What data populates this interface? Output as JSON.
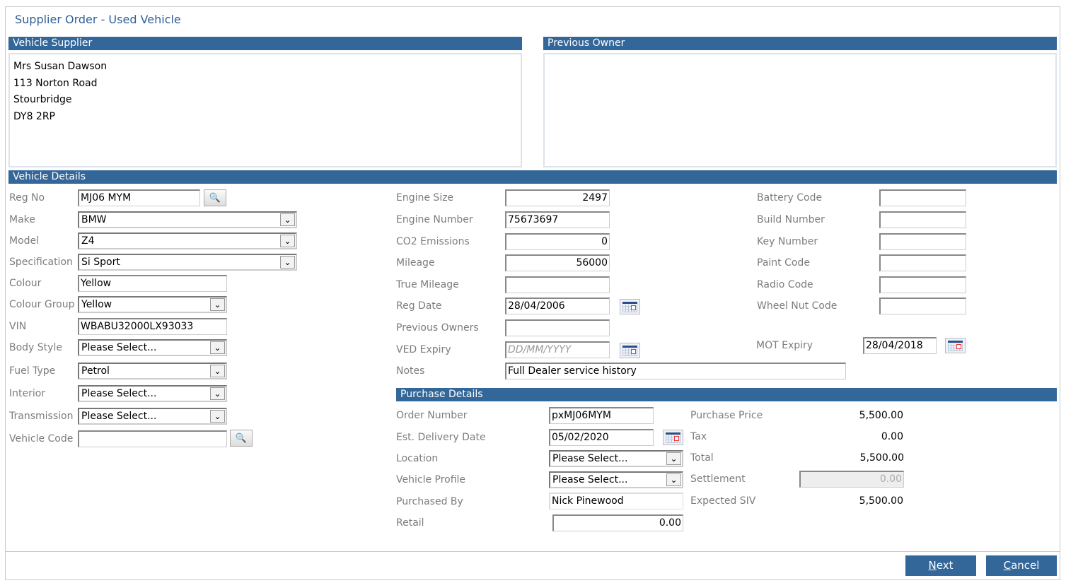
{
  "title": "Supplier Order - Used Vehicle",
  "supplier": {
    "header": "Vehicle Supplier",
    "lines": [
      "Mrs Susan Dawson",
      "113 Norton Road",
      "Stourbridge",
      "DY8 2RP"
    ]
  },
  "previous_owner": {
    "header": "Previous Owner"
  },
  "vehicle": {
    "header": "Vehicle Details",
    "reg_no": {
      "label": "Reg No",
      "value": "MJ06 MYM"
    },
    "make": {
      "label": "Make",
      "value": "BMW"
    },
    "model": {
      "label": "Model",
      "value": "Z4"
    },
    "specification": {
      "label": "Specification",
      "value": "Si Sport"
    },
    "colour": {
      "label": "Colour",
      "value": "Yellow"
    },
    "colour_group": {
      "label": "Colour Group",
      "value": "Yellow"
    },
    "vin": {
      "label": "VIN",
      "value": "WBABU32000LX93033"
    },
    "body_style": {
      "label": "Body Style",
      "value": "Please Select..."
    },
    "fuel_type": {
      "label": "Fuel Type",
      "value": "Petrol"
    },
    "interior": {
      "label": "Interior",
      "value": "Please Select..."
    },
    "transmission": {
      "label": "Transmission",
      "value": "Please Select..."
    },
    "vehicle_code": {
      "label": "Vehicle Code",
      "value": ""
    },
    "engine_size": {
      "label": "Engine Size",
      "value": "2497"
    },
    "engine_number": {
      "label": "Engine Number",
      "value": "75673697"
    },
    "co2": {
      "label": "CO2 Emissions",
      "value": "0"
    },
    "mileage": {
      "label": "Mileage",
      "value": "56000"
    },
    "true_mileage": {
      "label": "True Mileage",
      "value": ""
    },
    "reg_date": {
      "label": "Reg Date",
      "value": "28/04/2006"
    },
    "previous_owners": {
      "label": "Previous Owners",
      "value": ""
    },
    "ved_expiry": {
      "label": "VED Expiry",
      "placeholder": "DD/MM/YYYY"
    },
    "notes": {
      "label": "Notes",
      "value": "Full Dealer service history"
    },
    "battery_code": {
      "label": "Battery Code",
      "value": ""
    },
    "build_number": {
      "label": "Build Number",
      "value": ""
    },
    "key_number": {
      "label": "Key Number",
      "value": ""
    },
    "paint_code": {
      "label": "Paint Code",
      "value": ""
    },
    "radio_code": {
      "label": "Radio Code",
      "value": ""
    },
    "wheel_nut_code": {
      "label": "Wheel Nut Code",
      "value": ""
    },
    "mot_expiry": {
      "label": "MOT Expiry",
      "value": "28/04/2018"
    }
  },
  "purchase": {
    "header": "Purchase Details",
    "order_number": {
      "label": "Order Number",
      "value": "pxMJ06MYM"
    },
    "est_delivery": {
      "label": "Est. Delivery Date",
      "value": "05/02/2020"
    },
    "location": {
      "label": "Location",
      "value": "Please Select..."
    },
    "vehicle_profile": {
      "label": "Vehicle Profile",
      "value": "Please Select..."
    },
    "purchased_by": {
      "label": "Purchased By",
      "value": "Nick Pinewood"
    },
    "retail": {
      "label": "Retail",
      "value": "0.00"
    },
    "purchase_price": {
      "label": "Purchase Price",
      "value": "5,500.00"
    },
    "tax": {
      "label": "Tax",
      "value": "0.00"
    },
    "total": {
      "label": "Total",
      "value": "5,500.00"
    },
    "settlement": {
      "label": "Settlement",
      "value": "0.00"
    },
    "expected_siv": {
      "label": "Expected SIV",
      "value": "5,500.00"
    }
  },
  "buttons": {
    "next": "Next",
    "cancel": "Cancel"
  },
  "colors": {
    "accent": "#336699",
    "title": "#2f6098"
  }
}
